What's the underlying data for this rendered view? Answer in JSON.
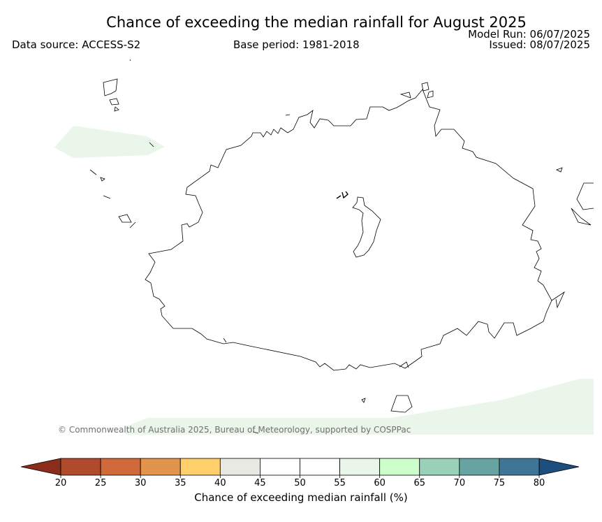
{
  "header": {
    "title": "Chance of exceeding the median rainfall for August 2025",
    "data_source": "Data source: ACCESS-S2",
    "base_period": "Base period: 1981-2018",
    "model_run": "Model Run: 06/07/2025",
    "issued": "Issued: 08/07/2025"
  },
  "map": {
    "copyright": "© Commonwealth of Australia 2025, Bureau of Meteorology, supported by COSPPac",
    "shaded_regions": [
      {
        "name": "northwest-shade",
        "category": "55-60"
      },
      {
        "name": "south-shade",
        "category": "55-60"
      }
    ],
    "colors": {
      "coastline": "#000000",
      "shade_55_60": "#e9f6e9"
    }
  },
  "colorbar": {
    "label": "Chance of exceeding median rainfall (%)",
    "ticks": [
      "20",
      "25",
      "30",
      "35",
      "40",
      "45",
      "50",
      "55",
      "60",
      "65",
      "70",
      "75",
      "80"
    ],
    "under_color": "#8c2d1c",
    "over_color": "#1d4e7e",
    "colors": [
      "#b04a2c",
      "#d06a3a",
      "#e3944c",
      "#fecf6a",
      "#e9e9e4",
      "#ffffff",
      "#ffffff",
      "#e9f6e9",
      "#ccffcc",
      "#99d1b8",
      "#68a3a4",
      "#3f7596"
    ]
  }
}
